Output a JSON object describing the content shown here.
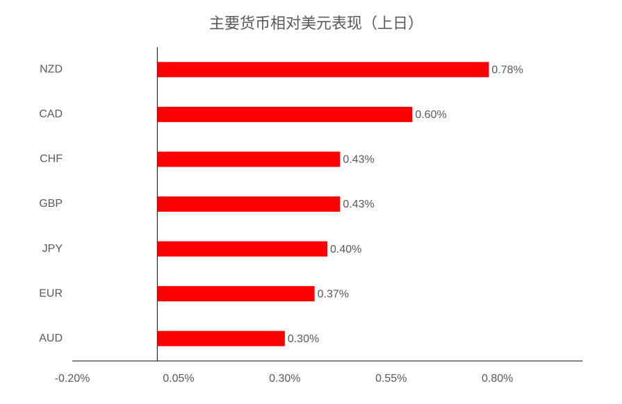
{
  "chart_data": {
    "type": "bar",
    "orientation": "horizontal",
    "title": "主要货币相对美元表现（上日）",
    "categories": [
      "NZD",
      "CAD",
      "CHF",
      "GBP",
      "JPY",
      "EUR",
      "AUD"
    ],
    "values": [
      0.78,
      0.6,
      0.43,
      0.43,
      0.4,
      0.37,
      0.3
    ],
    "value_labels": [
      "0.78%",
      "0.60%",
      "0.43%",
      "0.43%",
      "0.40%",
      "0.37%",
      "0.30%"
    ],
    "color": "#ff0000",
    "xlim": [
      -0.2,
      1.0
    ],
    "xticks": [
      {
        "value": -0.2,
        "label": "-0.20%"
      },
      {
        "value": 0.05,
        "label": "0.05%"
      },
      {
        "value": 0.3,
        "label": "0.30%"
      },
      {
        "value": 0.55,
        "label": "0.55%"
      },
      {
        "value": 0.8,
        "label": "0.80%"
      }
    ],
    "grid": false
  }
}
